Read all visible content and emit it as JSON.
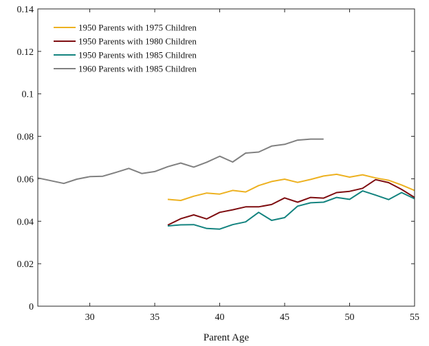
{
  "chart_data": {
    "type": "line",
    "title": "",
    "xlabel": "Parent Age",
    "ylabel": "",
    "xlim": [
      26,
      55
    ],
    "ylim": [
      0,
      0.14
    ],
    "x_ticks": [
      30,
      35,
      40,
      45,
      50,
      55
    ],
    "y_ticks": [
      0,
      0.02,
      0.04,
      0.06,
      0.08,
      0.1,
      0.12,
      0.14
    ],
    "x_tick_labels": [
      "30",
      "35",
      "40",
      "45",
      "50",
      "55"
    ],
    "y_tick_labels": [
      "0",
      "0.02",
      "0.04",
      "0.06",
      "0.08",
      "0.1",
      "0.12",
      "0.14"
    ],
    "grid": false,
    "legend_position": "top-left",
    "series": [
      {
        "name": "1950 Parents with 1975 Children",
        "color": "#EDB120",
        "x": [
          36,
          37,
          38,
          39,
          40,
          41,
          42,
          43,
          44,
          45,
          46,
          47,
          48,
          49,
          50,
          51,
          52,
          53,
          54,
          55
        ],
        "y": [
          0.0503,
          0.0498,
          0.0518,
          0.0533,
          0.0528,
          0.0545,
          0.0538,
          0.0568,
          0.0587,
          0.0598,
          0.0583,
          0.0597,
          0.0613,
          0.0621,
          0.0608,
          0.0619,
          0.0604,
          0.0593,
          0.0571,
          0.0545
        ]
      },
      {
        "name": "1950 Parents with 1980 Children",
        "color": "#7E0D10",
        "x": [
          36,
          37,
          38,
          39,
          40,
          41,
          42,
          43,
          44,
          45,
          46,
          47,
          48,
          49,
          50,
          51,
          52,
          53,
          54,
          55
        ],
        "y": [
          0.0382,
          0.0412,
          0.043,
          0.0411,
          0.0442,
          0.0454,
          0.0468,
          0.0468,
          0.0479,
          0.051,
          0.049,
          0.0512,
          0.0509,
          0.0535,
          0.0541,
          0.0555,
          0.0596,
          0.0582,
          0.055,
          0.0512
        ]
      },
      {
        "name": "1950 Parents with 1985 Children",
        "color": "#13837F",
        "x": [
          36,
          37,
          38,
          39,
          40,
          41,
          42,
          43,
          44,
          45,
          46,
          47,
          48,
          49,
          50,
          51,
          52,
          53,
          54,
          55
        ],
        "y": [
          0.0378,
          0.0383,
          0.0384,
          0.0366,
          0.0363,
          0.0384,
          0.0397,
          0.0442,
          0.0404,
          0.0417,
          0.0471,
          0.0487,
          0.049,
          0.0512,
          0.0503,
          0.0543,
          0.0523,
          0.0502,
          0.0535,
          0.0506
        ]
      },
      {
        "name": "1960 Parents with 1985 Children",
        "color": "#808080",
        "x": [
          26,
          27,
          28,
          29,
          30,
          31,
          32,
          33,
          34,
          35,
          36,
          37,
          38,
          39,
          40,
          41,
          42,
          43,
          44,
          45,
          46,
          47,
          48
        ],
        "y": [
          0.0604,
          0.0591,
          0.0578,
          0.0598,
          0.061,
          0.0612,
          0.063,
          0.0649,
          0.0625,
          0.0634,
          0.0657,
          0.0674,
          0.0655,
          0.0678,
          0.0706,
          0.0679,
          0.0721,
          0.0726,
          0.0754,
          0.0762,
          0.0782,
          0.0787,
          0.0787
        ]
      }
    ]
  }
}
